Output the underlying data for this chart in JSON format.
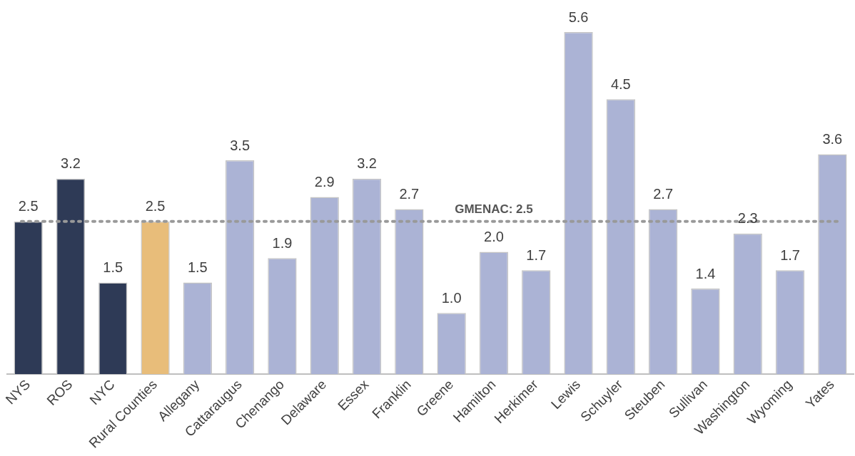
{
  "chart_data": {
    "type": "bar",
    "categories": [
      "NYS",
      "ROS",
      "NYC",
      "Rural Counties",
      "Allegany",
      "Cattaraugus",
      "Chenango",
      "Delaware",
      "Essex",
      "Franklin",
      "Greene",
      "Hamilton",
      "Herkimer",
      "Lewis",
      "Schuyler",
      "Steuben",
      "Sullivan",
      "Washington",
      "Wyoming",
      "Yates"
    ],
    "values": [
      2.5,
      3.2,
      1.5,
      2.5,
      1.5,
      3.5,
      1.9,
      2.9,
      3.2,
      2.7,
      1.0,
      2.0,
      1.7,
      5.6,
      4.5,
      2.7,
      1.4,
      2.3,
      1.7,
      3.6
    ],
    "colors": [
      "#2e3a56",
      "#2e3a56",
      "#2e3a56",
      "#e8bd7a",
      "#abb3d5",
      "#abb3d5",
      "#abb3d5",
      "#abb3d5",
      "#abb3d5",
      "#abb3d5",
      "#abb3d5",
      "#abb3d5",
      "#abb3d5",
      "#abb3d5",
      "#abb3d5",
      "#abb3d5",
      "#abb3d5",
      "#abb3d5",
      "#abb3d5",
      "#abb3d5"
    ],
    "value_labels": [
      "2.5",
      "3.2",
      "1.5",
      "2.5",
      "1.5",
      "3.5",
      "1.9",
      "2.9",
      "3.2",
      "2.7",
      "1.0",
      "2.0",
      "1.7",
      "5.6",
      "4.5",
      "2.7",
      "1.4",
      "2.3",
      "1.7",
      "3.6"
    ],
    "ref_lines": [
      {
        "axis": "y",
        "value": 2.5,
        "label": "GMENAC: 2.5",
        "color": "#999999",
        "line_style": "dotted"
      }
    ],
    "legend": false,
    "grid": false
  }
}
